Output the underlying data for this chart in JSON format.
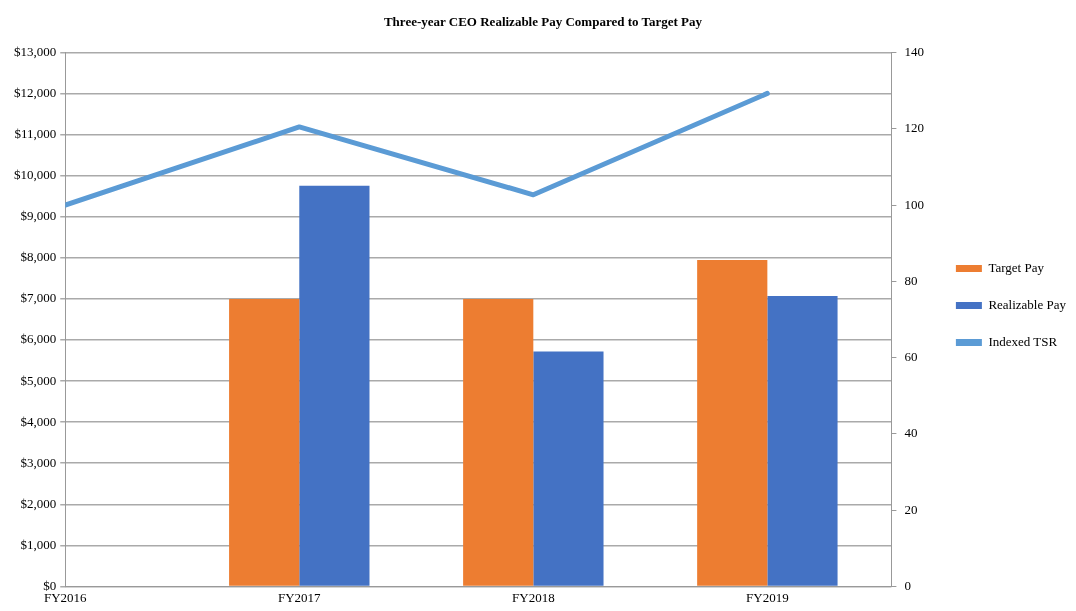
{
  "chart_data": {
    "type": "bar",
    "title": "Three-year CEO Realizable Pay Compared to Target Pay",
    "categories": [
      "FY2016",
      "FY2017",
      "FY2018",
      "FY2019"
    ],
    "series": [
      {
        "name": "Target Pay",
        "color": "#ed7d31",
        "values": [
          null,
          7000,
          7000,
          7950
        ]
      },
      {
        "name": "Realizable Pay",
        "color": "#4472c4",
        "values": [
          null,
          9760,
          5720,
          7075
        ]
      },
      {
        "name": "Indexed TSR",
        "type": "line",
        "axis": "y2",
        "color": "#5b9bd5",
        "values": [
          100,
          120.5,
          102.7,
          129.3
        ]
      }
    ],
    "ylim": [
      0,
      13000
    ],
    "yticks": [
      {
        "value": 0,
        "label": "$0"
      },
      {
        "value": 1000,
        "label": "$1,000"
      },
      {
        "value": 2000,
        "label": "$2,000"
      },
      {
        "value": 3000,
        "label": "$3,000"
      },
      {
        "value": 4000,
        "label": "$4,000"
      },
      {
        "value": 5000,
        "label": "$5,000"
      },
      {
        "value": 6000,
        "label": "$6,000"
      },
      {
        "value": 7000,
        "label": "$7,000"
      },
      {
        "value": 8000,
        "label": "$8,000"
      },
      {
        "value": 9000,
        "label": "$9,000"
      },
      {
        "value": 10000,
        "label": "$10,000"
      },
      {
        "value": 11000,
        "label": "$11,000"
      },
      {
        "value": 12000,
        "label": "$12,000"
      },
      {
        "value": 13000,
        "label": "$13,000"
      }
    ],
    "y2lim": [
      0,
      140
    ],
    "y2ticks": [
      0,
      20,
      40,
      60,
      80,
      100,
      120,
      140
    ],
    "grid": "y",
    "legend": "right"
  }
}
